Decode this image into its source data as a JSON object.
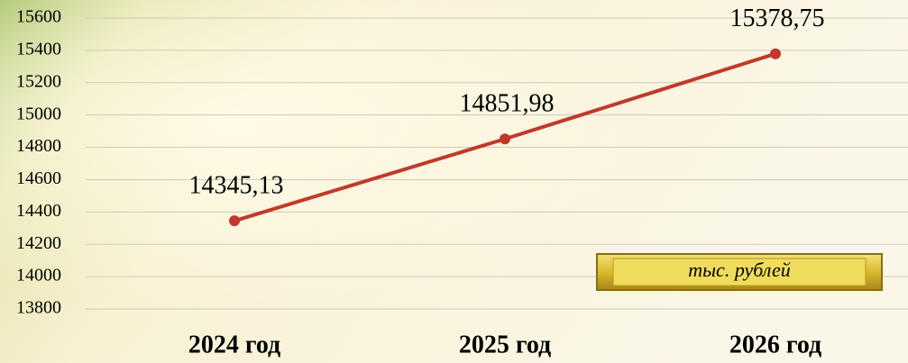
{
  "chart_data": {
    "type": "line",
    "categories": [
      "2024 год",
      "2025 год",
      "2026 год"
    ],
    "series": [
      {
        "color": "#c0392b",
        "values": [
          14345.13,
          14851.98,
          15378.75
        ],
        "value_labels": [
          "14345,13",
          "14851,98",
          "15378,75"
        ]
      }
    ],
    "ylim": [
      13800,
      15600
    ],
    "yticks": [
      13800,
      14000,
      14200,
      14400,
      14600,
      14800,
      15000,
      15200,
      15400,
      15600
    ],
    "grid": true,
    "annotation": "тыс. рублей"
  }
}
